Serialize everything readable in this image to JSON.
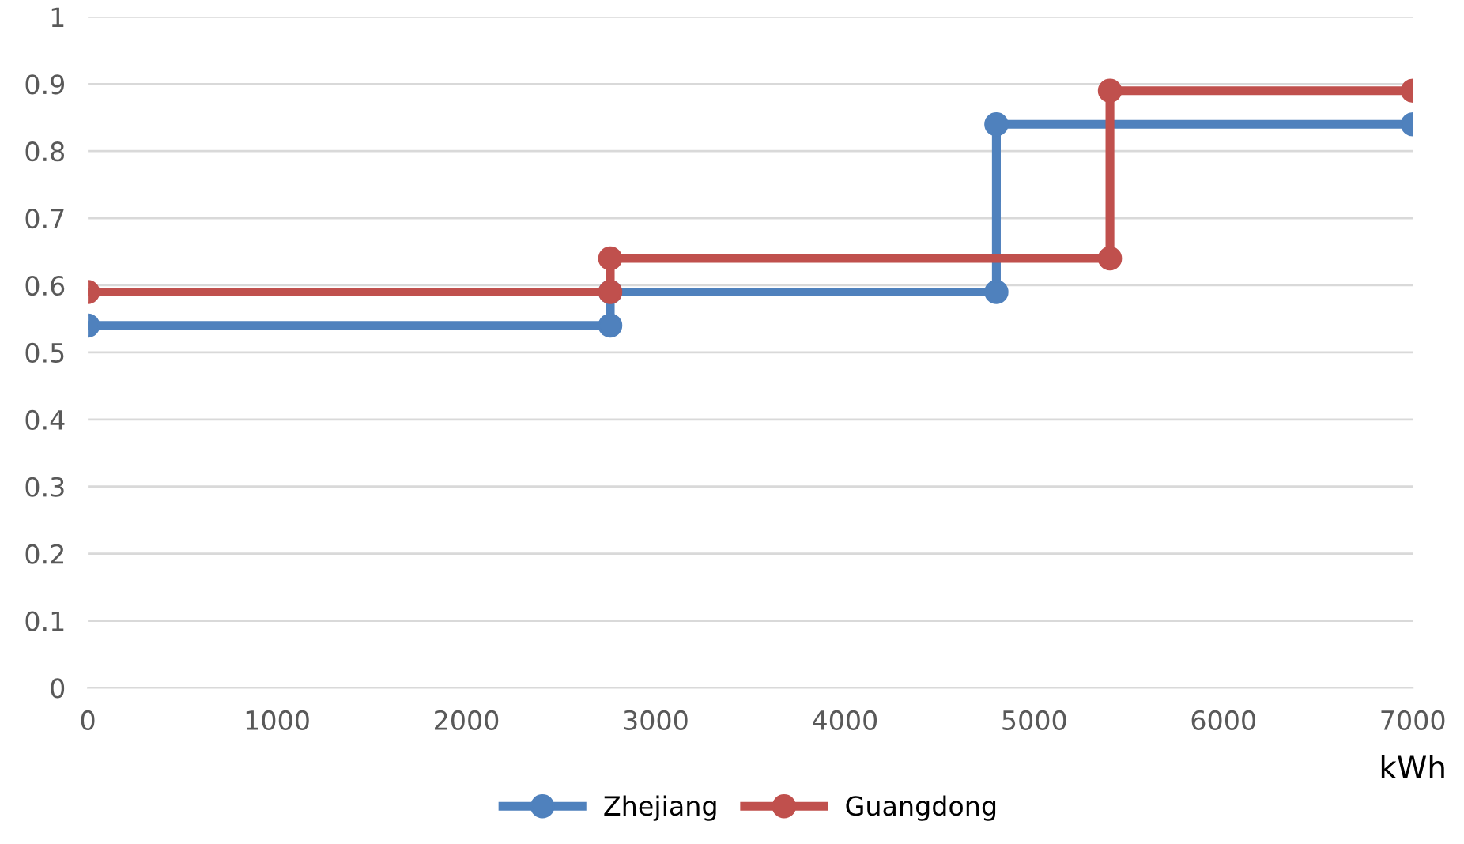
{
  "chart_data": {
    "type": "line",
    "xlabel": "kWh",
    "xlim": [
      0,
      7000
    ],
    "xticks": [
      0,
      1000,
      2000,
      3000,
      4000,
      5000,
      6000,
      7000
    ],
    "ylim": [
      0,
      1
    ],
    "yticks": [
      0,
      0.1,
      0.2,
      0.3,
      0.4,
      0.5,
      0.6,
      0.7,
      0.8,
      0.9,
      1
    ],
    "grid": "y",
    "legend": "bottom",
    "marker": "circle",
    "line_style": "solid",
    "series": [
      {
        "name": "Zhejiang",
        "color": "#4f81bd",
        "x": [
          0,
          2760,
          2760,
          4800,
          4800,
          7000
        ],
        "values": [
          0.54,
          0.54,
          0.59,
          0.59,
          0.84,
          0.84
        ]
      },
      {
        "name": "Guangdong",
        "color": "#c0504d",
        "x": [
          0,
          2760,
          2760,
          5400,
          5400,
          7000
        ],
        "values": [
          0.59,
          0.59,
          0.64,
          0.64,
          0.89,
          0.89
        ]
      }
    ]
  }
}
